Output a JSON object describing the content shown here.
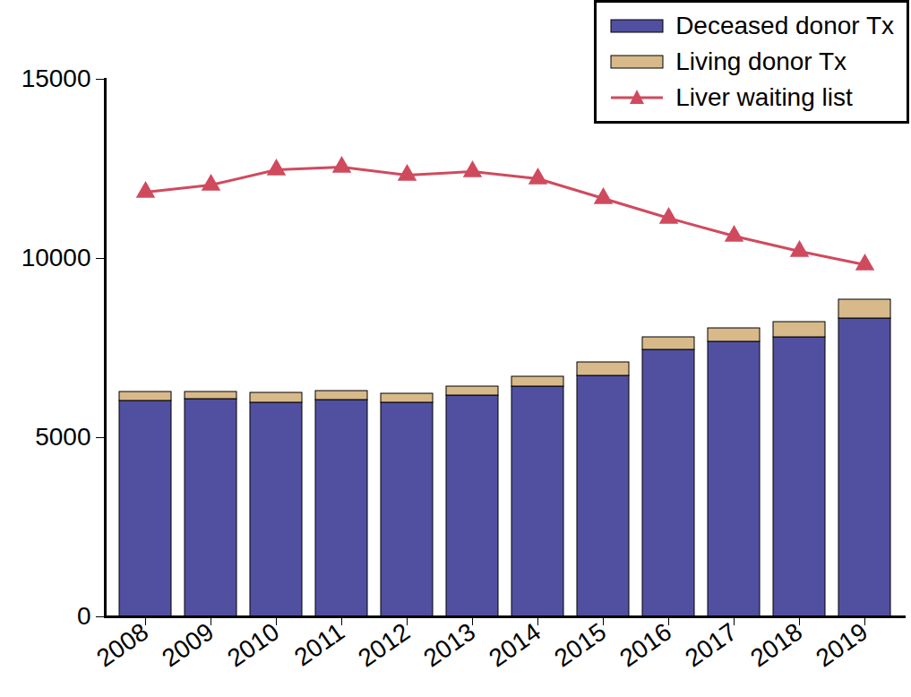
{
  "chart_data": {
    "type": "bar",
    "stacked": true,
    "legend": "top-right",
    "grid": false,
    "categories": [
      "2008",
      "2009",
      "2010",
      "2011",
      "2012",
      "2013",
      "2014",
      "2015",
      "2016",
      "2017",
      "2018",
      "2019"
    ],
    "ylim": [
      0,
      15000
    ],
    "yticks": [
      0,
      5000,
      10000,
      15000
    ],
    "series": [
      {
        "name": "Deceased donor Tx",
        "type": "bar",
        "color": "#5150a0",
        "values": [
          6025,
          6075,
          5975,
          6050,
          5975,
          6175,
          6425,
          6725,
          7450,
          7675,
          7800,
          8325
        ]
      },
      {
        "name": "Living donor Tx",
        "type": "bar",
        "color": "#d8b98a",
        "values": [
          250,
          200,
          275,
          250,
          250,
          250,
          275,
          375,
          350,
          375,
          425,
          525
        ]
      },
      {
        "name": "Liver waiting list",
        "type": "line",
        "marker": "triangle",
        "color": "#d04a5e",
        "values": [
          11850,
          12050,
          12475,
          12550,
          12325,
          12425,
          12225,
          11675,
          11125,
          10625,
          10200,
          9825
        ]
      }
    ]
  }
}
